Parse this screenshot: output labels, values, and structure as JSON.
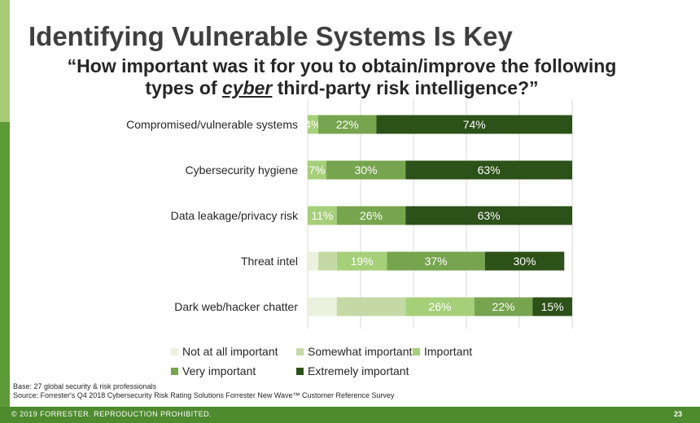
{
  "title": "Identifying Vulnerable Systems Is Key",
  "subtitle": {
    "line1": "“How important was it for you to obtain/improve the following",
    "line2_before": "types of ",
    "line2_emph": "cyber",
    "line2_after": " third-party risk intelligence?”"
  },
  "chart_data": {
    "type": "bar",
    "orientation": "horizontal",
    "stacked": true,
    "categories": [
      "Compromised/vulnerable systems",
      "Cybersecurity hygiene",
      "Data leakage/privacy risk",
      "Threat intel",
      "Dark web/hacker chatter"
    ],
    "series": [
      {
        "name": "Not at all important",
        "color": "#ebf1de",
        "values": [
          0,
          0,
          0,
          4,
          11
        ],
        "labels": [
          "",
          "",
          "",
          "",
          ""
        ]
      },
      {
        "name": "Somewhat important",
        "color": "#c4d9a6",
        "values": [
          0,
          0,
          0,
          7,
          26
        ],
        "labels": [
          "",
          "",
          "",
          "",
          ""
        ]
      },
      {
        "name": "Important",
        "color": "#a5cf79",
        "values": [
          4,
          7,
          11,
          19,
          26
        ],
        "labels": [
          "4%",
          "7%",
          "11%",
          "19%",
          "26%"
        ]
      },
      {
        "name": "Very important",
        "color": "#77a44f",
        "values": [
          22,
          30,
          26,
          37,
          22
        ],
        "labels": [
          "22%",
          "30%",
          "26%",
          "37%",
          "22%"
        ]
      },
      {
        "name": "Extremely important",
        "color": "#2c5119",
        "values": [
          74,
          63,
          63,
          30,
          15
        ],
        "labels": [
          "74%",
          "63%",
          "63%",
          "30%",
          "15%"
        ]
      }
    ],
    "xlim": [
      0,
      100
    ],
    "grid": true,
    "legend_position": "bottom"
  },
  "notes": {
    "base": "Base: 27 global security & risk professionals",
    "source": "Source: Forrester's Q4 2018 Cybersecurity Risk Rating Solutions Forrester New Wave™ Customer Reference Survey"
  },
  "footer": {
    "copyright": "© 2019 FORRESTER. REPRODUCTION PROHIBITED.",
    "page": "23"
  }
}
